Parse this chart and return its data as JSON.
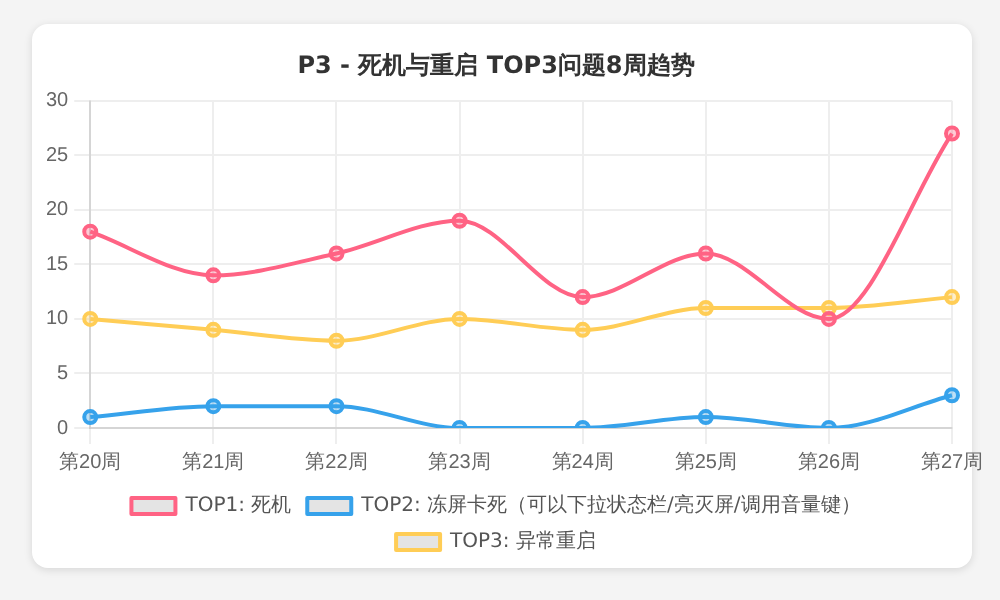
{
  "chart_data": {
    "type": "line",
    "title": "P3 - 死机与重启 TOP3问题8周趋势",
    "categories": [
      "第20周",
      "第21周",
      "第22周",
      "第23周",
      "第24周",
      "第25周",
      "第26周",
      "第27周"
    ],
    "series": [
      {
        "name": "TOP1: 死机",
        "color": "#ff6384",
        "values": [
          18,
          14,
          16,
          19,
          12,
          16,
          10,
          27
        ]
      },
      {
        "name": "TOP2: 冻屏卡死（可以下拉状态栏/亮灭屏/调用音量键）",
        "color": "#36a2eb",
        "values": [
          1,
          2,
          2,
          0,
          0,
          1,
          0,
          3
        ]
      },
      {
        "name": "TOP3: 异常重启",
        "color": "#ffcd56",
        "values": [
          10,
          9,
          8,
          10,
          9,
          11,
          11,
          12
        ]
      }
    ],
    "ylim": [
      0,
      30
    ],
    "yticks": [
      0,
      5,
      10,
      15,
      20,
      25,
      30
    ],
    "grid": true,
    "legend": "bottom",
    "marker": "circle",
    "line_style": "solid"
  }
}
